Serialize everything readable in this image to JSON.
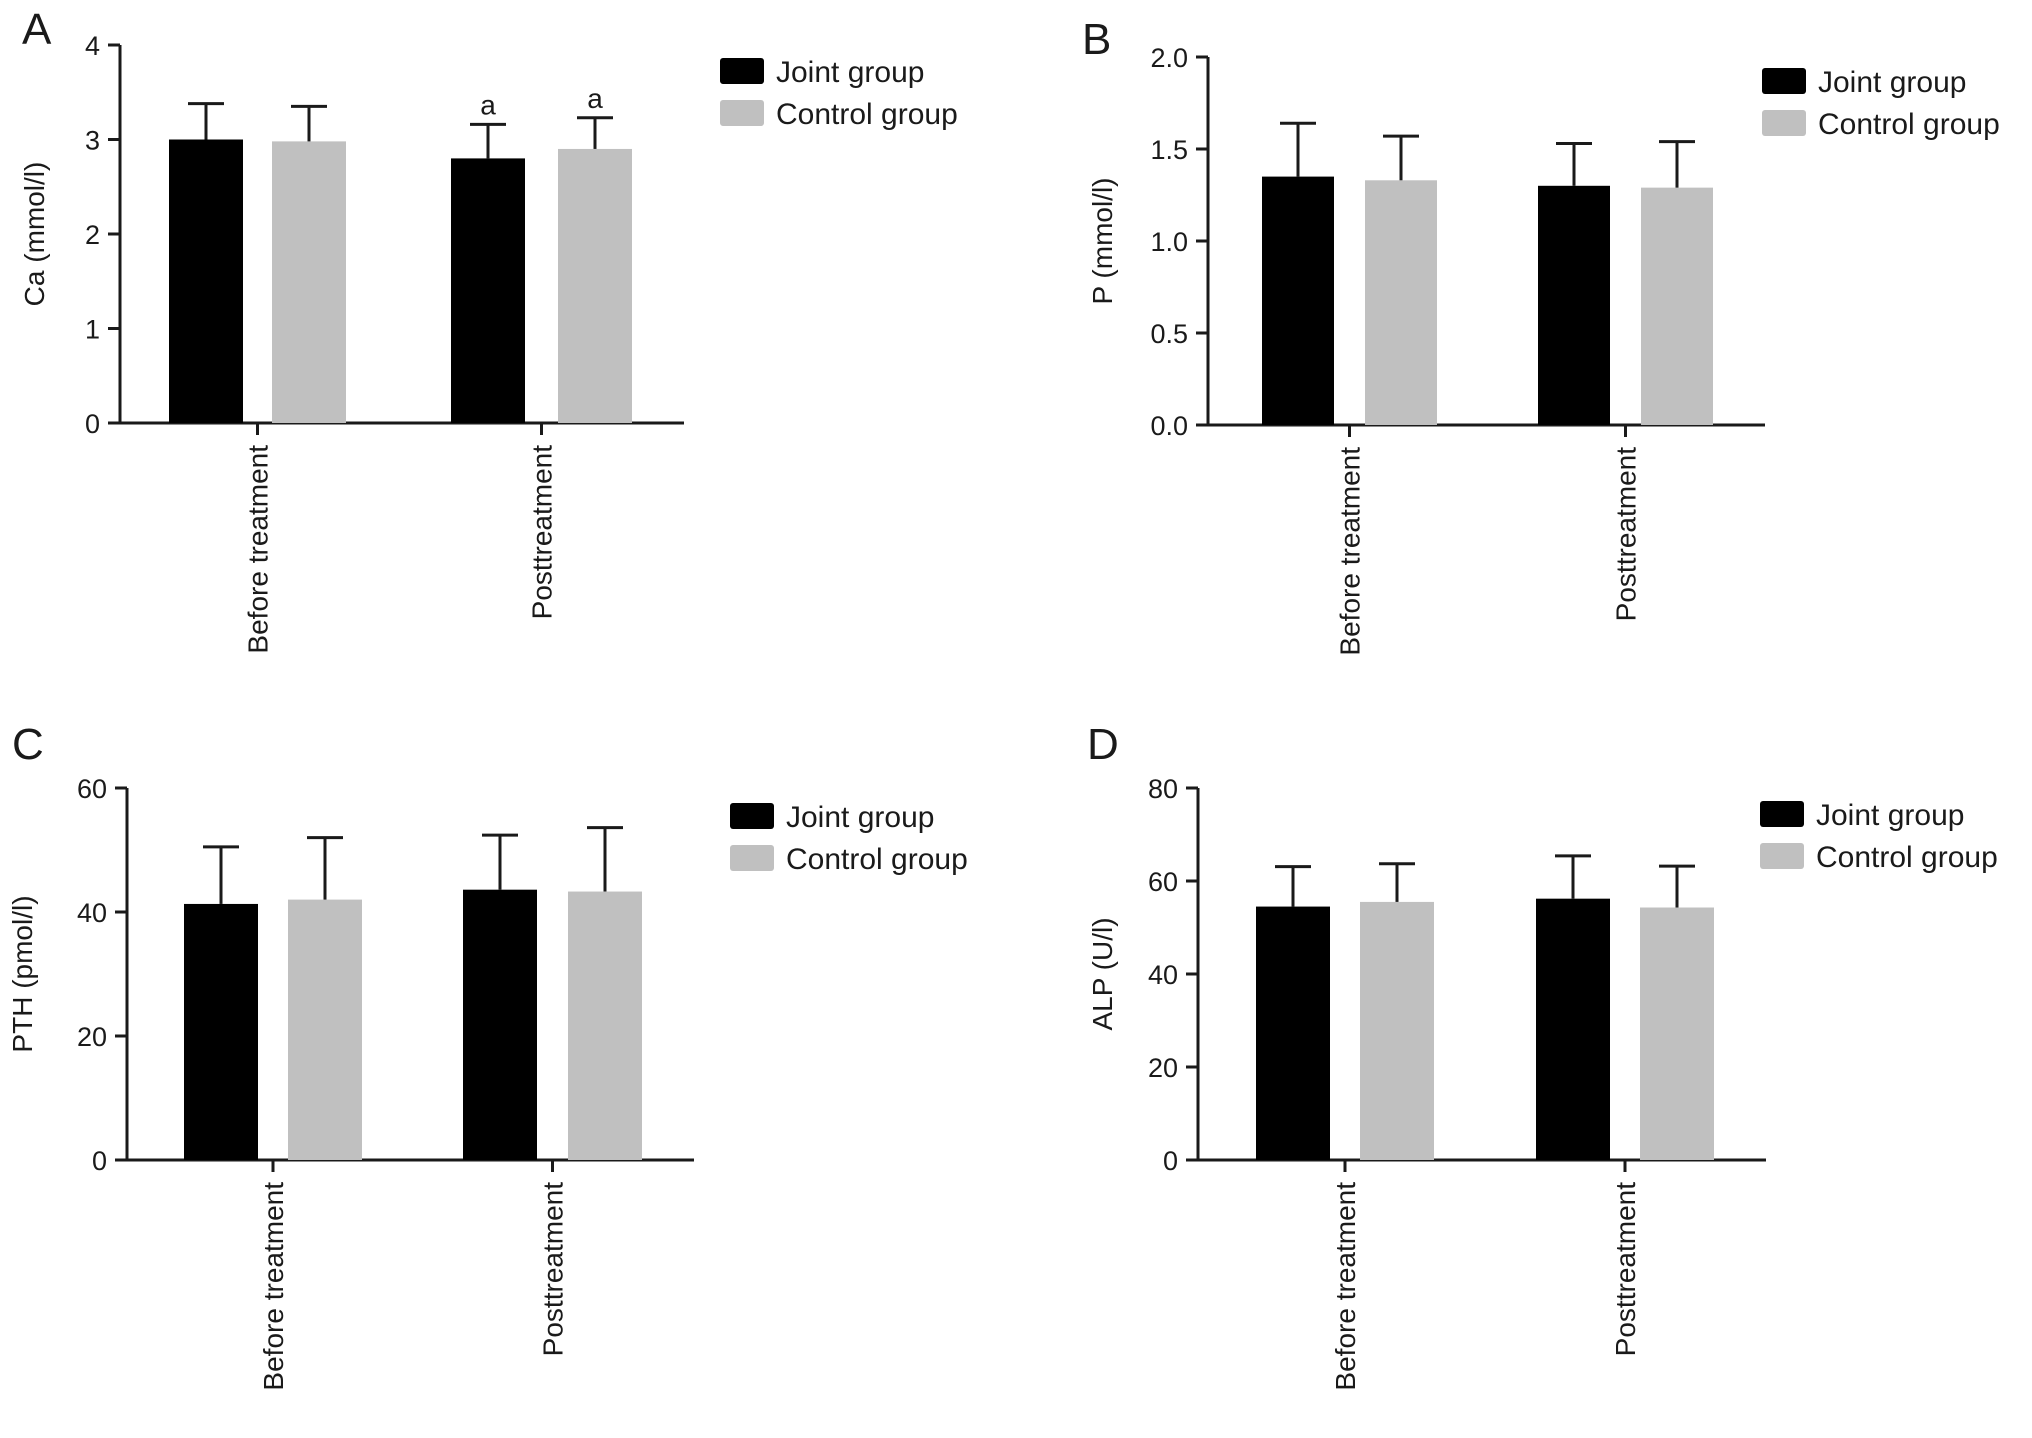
{
  "colors": {
    "joint": "#000000",
    "control": "#c0c0c0",
    "axis": "#1a1a1a"
  },
  "chart_data": [
    {
      "panel": "A",
      "type": "bar",
      "ylabel": "Ca (mmol/l)",
      "xlabel": "",
      "ylim": [
        0,
        4
      ],
      "yticks": [
        "0",
        "1",
        "2",
        "3",
        "4"
      ],
      "categories": [
        "Before treatment",
        "Posttreatment"
      ],
      "legend": {
        "placement": "top-right"
      },
      "series": [
        {
          "name": "Joint group",
          "color": "#000000",
          "values": [
            3.0,
            2.8
          ],
          "errors": [
            0.38,
            0.36
          ]
        },
        {
          "name": "Control group",
          "color": "#c0c0c0",
          "values": [
            2.98,
            2.9
          ],
          "errors": [
            0.37,
            0.33
          ]
        }
      ],
      "annotations": [
        {
          "series": 0,
          "category": 1,
          "text": "a"
        },
        {
          "series": 1,
          "category": 1,
          "text": "a"
        }
      ],
      "grid": false
    },
    {
      "panel": "B",
      "type": "bar",
      "ylabel": "P (mmol/l)",
      "xlabel": "",
      "ylim": [
        0,
        2
      ],
      "yticks": [
        "0.0",
        "0.5",
        "1.0",
        "1.5",
        "2.0"
      ],
      "categories": [
        "Before treatment",
        "Posttreatment"
      ],
      "legend": {
        "placement": "top-right"
      },
      "series": [
        {
          "name": "Joint group",
          "color": "#000000",
          "values": [
            1.35,
            1.3
          ],
          "errors": [
            0.29,
            0.23
          ]
        },
        {
          "name": "Control group",
          "color": "#c0c0c0",
          "values": [
            1.33,
            1.29
          ],
          "errors": [
            0.24,
            0.25
          ]
        }
      ],
      "annotations": [],
      "grid": false
    },
    {
      "panel": "C",
      "type": "bar",
      "ylabel": "PTH (pmol/l)",
      "xlabel": "",
      "ylim": [
        0,
        60
      ],
      "yticks": [
        "0",
        "20",
        "40",
        "60"
      ],
      "categories": [
        "Before treatment",
        "Posttreatment"
      ],
      "legend": {
        "placement": "top-right"
      },
      "series": [
        {
          "name": "Joint group",
          "color": "#000000",
          "values": [
            41.3,
            43.6
          ],
          "errors": [
            9.2,
            8.8
          ]
        },
        {
          "name": "Control group",
          "color": "#c0c0c0",
          "values": [
            42.0,
            43.3
          ],
          "errors": [
            10.0,
            10.3
          ]
        }
      ],
      "annotations": [],
      "grid": false
    },
    {
      "panel": "D",
      "type": "bar",
      "ylabel": "ALP (U/l)",
      "xlabel": "",
      "ylim": [
        0,
        80
      ],
      "yticks": [
        "0",
        "20",
        "40",
        "60",
        "80"
      ],
      "categories": [
        "Before treatment",
        "Posttreatment"
      ],
      "legend": {
        "placement": "top-right"
      },
      "series": [
        {
          "name": "Joint group",
          "color": "#000000",
          "values": [
            54.5,
            56.2
          ],
          "errors": [
            8.6,
            9.2
          ]
        },
        {
          "name": "Control group",
          "color": "#c0c0c0",
          "values": [
            55.5,
            54.3
          ],
          "errors": [
            8.2,
            8.9
          ]
        }
      ],
      "annotations": [],
      "grid": false
    }
  ]
}
